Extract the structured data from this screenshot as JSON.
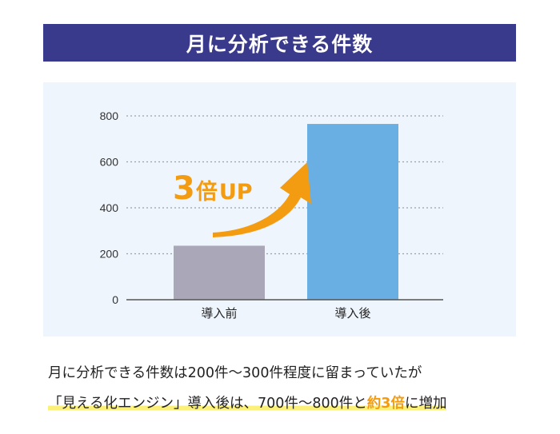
{
  "title": "月に分析できる件数",
  "chart_data": {
    "type": "bar",
    "categories": [
      "導入前",
      "導入後"
    ],
    "values": [
      235,
      765
    ],
    "ylim": [
      0,
      800
    ],
    "yticks": [
      0,
      200,
      400,
      600,
      800
    ],
    "grid": true,
    "bar_colors": [
      "#aaa7b8",
      "#6aafe3"
    ],
    "annotation": {
      "number": "3",
      "unit": "倍",
      "suffix": "UP",
      "color": "#f39c12"
    }
  },
  "caption": {
    "line1": "月に分析できる件数は200件〜300件程度に留まっていたが",
    "line2_before": "「見える化エンジン」導入後は、700件〜800件と",
    "line2_accent": "約3倍",
    "line2_after": "に増加"
  },
  "colors": {
    "banner": "#3a3a8c",
    "panel": "#eef5fd",
    "accent": "#f39c12",
    "highlight": "#fbf07a"
  }
}
